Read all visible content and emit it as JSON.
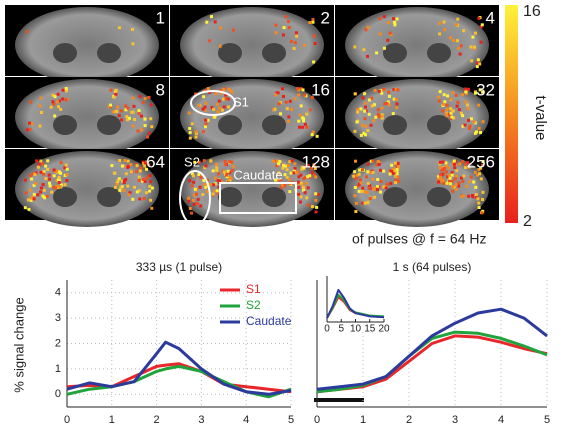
{
  "brain_maps": {
    "labels": [
      "1",
      "2",
      "4",
      "8",
      "16",
      "32",
      "64",
      "128",
      "256"
    ],
    "annotations": {
      "s1": "S1",
      "s2": "S2",
      "caudate": "Caudate"
    },
    "colorbar": {
      "label": "t-value",
      "ticks": [
        16,
        2
      ]
    },
    "caption": "of pulses @ f = 64 Hz"
  },
  "chart_data": [
    {
      "type": "line",
      "title": "333 µs (1 pulse)",
      "y_label": "% signal change",
      "x": [
        0,
        0.5,
        1,
        1.5,
        2,
        2.2,
        2.5,
        3,
        3.5,
        4,
        4.5,
        5
      ],
      "series": [
        {
          "name": "S1",
          "color": "#e8262b",
          "values": [
            0.3,
            0.35,
            0.3,
            0.7,
            1.1,
            1.15,
            1.2,
            0.9,
            0.4,
            0.3,
            0.2,
            0.1
          ]
        },
        {
          "name": "S2",
          "color": "#1fa33b",
          "values": [
            0.0,
            0.2,
            0.3,
            0.5,
            0.9,
            1.0,
            1.1,
            0.9,
            0.5,
            0.1,
            -0.1,
            0.2
          ]
        },
        {
          "name": "Caudate",
          "color": "#2b3a9c",
          "values": [
            0.2,
            0.45,
            0.3,
            0.5,
            1.6,
            2.05,
            1.8,
            1.0,
            0.4,
            0.1,
            0.0,
            0.15
          ]
        }
      ],
      "xlim": [
        0,
        5
      ],
      "xticks": [
        0,
        1,
        2,
        3,
        4,
        5
      ],
      "ylim": [
        -0.5,
        4.5
      ],
      "yticks": [
        0,
        1,
        2,
        3,
        4
      ],
      "grid": true
    },
    {
      "type": "line",
      "title": "1 s (64 pulses)",
      "x": [
        0,
        0.5,
        1,
        1.5,
        2,
        2.5,
        3,
        3.5,
        4,
        4.5,
        5
      ],
      "series": [
        {
          "name": "S1",
          "color": "#e8262b",
          "values": [
            0.1,
            0.2,
            0.3,
            0.6,
            1.3,
            2.0,
            2.3,
            2.25,
            2.05,
            1.8,
            1.6
          ]
        },
        {
          "name": "S2",
          "color": "#1fa33b",
          "values": [
            0.1,
            0.2,
            0.35,
            0.7,
            1.5,
            2.2,
            2.45,
            2.4,
            2.2,
            1.9,
            1.55
          ]
        },
        {
          "name": "Caudate",
          "color": "#2b3a9c",
          "values": [
            0.2,
            0.3,
            0.4,
            0.7,
            1.5,
            2.3,
            2.8,
            3.2,
            3.35,
            3.0,
            2.3
          ]
        }
      ],
      "xlim": [
        0,
        5
      ],
      "xticks": [
        0,
        1,
        2,
        3,
        4,
        5
      ],
      "ylim": [
        -0.5,
        4.5
      ],
      "grid": true
    },
    {
      "type": "line",
      "x": [
        0,
        2,
        4,
        6,
        8,
        10,
        15,
        20
      ],
      "series": [
        {
          "name": "S1",
          "color": "#e8262b",
          "values": [
            0,
            1.2,
            2.6,
            2.0,
            1.0,
            0.6,
            0.3,
            0.1
          ]
        },
        {
          "name": "S2",
          "color": "#1fa33b",
          "values": [
            0,
            1.3,
            2.9,
            2.2,
            1.1,
            0.7,
            0.3,
            0.2
          ]
        },
        {
          "name": "Caudate",
          "color": "#2b3a9c",
          "values": [
            0,
            1.5,
            3.5,
            2.5,
            1.2,
            0.6,
            0.2,
            0.1
          ]
        }
      ],
      "xlim": [
        0,
        20
      ],
      "xticks": [
        0,
        5,
        10,
        15,
        20
      ],
      "ylim": [
        -0.5,
        4.5
      ]
    }
  ]
}
